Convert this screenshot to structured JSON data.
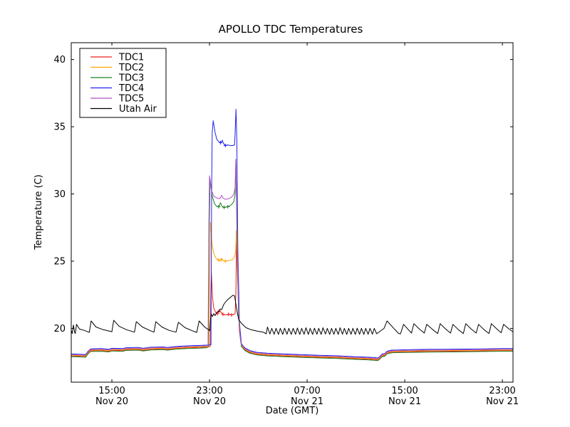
{
  "chart_data": {
    "type": "line",
    "title": "APOLLO TDC Temperatures",
    "xlabel": "Date (GMT)",
    "ylabel": "Temperature (C)",
    "x_unit": "hours since Nov 20 00:00 GMT",
    "xlim": [
      11.67,
      47.87
    ],
    "ylim": [
      16.0,
      41.25
    ],
    "grid": false,
    "yticks": [
      20,
      25,
      30,
      35,
      40
    ],
    "xticks": [
      {
        "t": 15,
        "time": "15:00",
        "date": "Nov 20"
      },
      {
        "t": 23,
        "time": "23:00",
        "date": "Nov 20"
      },
      {
        "t": 31,
        "time": "07:00",
        "date": "Nov 21"
      },
      {
        "t": 39,
        "time": "15:00",
        "date": "Nov 21"
      },
      {
        "t": 47,
        "time": "23:00",
        "date": "Nov 21"
      }
    ],
    "legend": {
      "position": "upper left",
      "entries": [
        "TDC1",
        "TDC2",
        "TDC3",
        "TDC4",
        "TDC5",
        "Utah Air"
      ]
    },
    "tdc_baseline_pre": [
      [
        11.67,
        18.1
      ],
      [
        12.3,
        18.08
      ],
      [
        12.85,
        18.06
      ],
      [
        13.05,
        18.3
      ],
      [
        13.25,
        18.48
      ],
      [
        14.1,
        18.5
      ],
      [
        14.75,
        18.45
      ],
      [
        15.0,
        18.52
      ],
      [
        15.9,
        18.5
      ],
      [
        16.15,
        18.56
      ],
      [
        17.2,
        18.58
      ],
      [
        17.55,
        18.52
      ],
      [
        18.2,
        18.6
      ],
      [
        19.2,
        18.62
      ],
      [
        19.55,
        18.58
      ],
      [
        20.3,
        18.66
      ],
      [
        21.2,
        18.7
      ],
      [
        22.2,
        18.73
      ],
      [
        22.8,
        18.76
      ]
    ],
    "tdc_baseline_post": [
      [
        25.62,
        18.85
      ],
      [
        25.9,
        18.55
      ],
      [
        26.3,
        18.35
      ],
      [
        26.9,
        18.22
      ],
      [
        27.8,
        18.15
      ],
      [
        29.0,
        18.1
      ],
      [
        30.5,
        18.05
      ],
      [
        32.0,
        18.0
      ],
      [
        33.5,
        17.96
      ],
      [
        34.8,
        17.9
      ],
      [
        35.8,
        17.87
      ],
      [
        36.5,
        17.83
      ],
      [
        36.8,
        17.8
      ],
      [
        37.0,
        17.95
      ],
      [
        37.15,
        18.1
      ],
      [
        37.35,
        18.12
      ],
      [
        37.55,
        18.3
      ],
      [
        37.9,
        18.38
      ],
      [
        38.5,
        18.4
      ],
      [
        39.5,
        18.42
      ],
      [
        41.0,
        18.44
      ],
      [
        42.5,
        18.45
      ],
      [
        44.0,
        18.46
      ],
      [
        45.5,
        18.48
      ],
      [
        47.0,
        18.5
      ],
      [
        47.87,
        18.5
      ]
    ],
    "series": [
      {
        "name": "TDC1",
        "color": "#e62020",
        "offset": -0.15,
        "event": [
          [
            23.05,
            18.65
          ],
          [
            23.1,
            22.0
          ],
          [
            23.15,
            24.2
          ],
          [
            23.25,
            22.3
          ],
          [
            23.35,
            21.5
          ],
          [
            23.5,
            21.2
          ],
          [
            23.65,
            21.1
          ],
          [
            23.8,
            21.3
          ],
          [
            23.95,
            21.2
          ],
          [
            24.1,
            21.05
          ],
          [
            24.3,
            21.0
          ],
          [
            24.55,
            21.05
          ],
          [
            24.8,
            21.0
          ],
          [
            25.0,
            21.05
          ],
          [
            25.1,
            21.1
          ],
          [
            25.17,
            23.0
          ],
          [
            25.21,
            26.7
          ],
          [
            25.3,
            24.0
          ],
          [
            25.45,
            19.8
          ],
          [
            25.6,
            18.8
          ]
        ],
        "markers": [
          [
            23.65,
            21.1
          ],
          [
            23.8,
            21.3
          ],
          [
            24.1,
            21.05
          ],
          [
            24.55,
            21.05
          ],
          [
            24.8,
            21.0
          ]
        ]
      },
      {
        "name": "TDC2",
        "color": "#ffa500",
        "offset": -0.1,
        "event": [
          [
            22.95,
            18.7
          ],
          [
            23.02,
            24.0
          ],
          [
            23.08,
            27.9
          ],
          [
            23.2,
            26.3
          ],
          [
            23.35,
            25.6
          ],
          [
            23.5,
            25.25
          ],
          [
            23.7,
            25.1
          ],
          [
            23.85,
            25.05
          ],
          [
            24.0,
            25.2
          ],
          [
            24.1,
            25.05
          ],
          [
            24.3,
            25.0
          ],
          [
            24.6,
            25.05
          ],
          [
            24.85,
            25.1
          ],
          [
            25.05,
            25.3
          ],
          [
            25.15,
            25.8
          ],
          [
            25.2,
            27.3
          ],
          [
            25.3,
            25.0
          ],
          [
            25.42,
            20.5
          ],
          [
            25.58,
            19.0
          ]
        ],
        "markers": [
          [
            23.75,
            25.08
          ],
          [
            23.95,
            25.1
          ],
          [
            24.3,
            25.0
          ]
        ]
      },
      {
        "name": "TDC3",
        "color": "#208020",
        "offset": -0.2,
        "event": [
          [
            22.9,
            18.7
          ],
          [
            22.97,
            27.0
          ],
          [
            23.05,
            31.1
          ],
          [
            23.2,
            29.9
          ],
          [
            23.4,
            29.3
          ],
          [
            23.55,
            29.1
          ],
          [
            23.75,
            29.05
          ],
          [
            23.9,
            29.35
          ],
          [
            24.0,
            29.1
          ],
          [
            24.2,
            29.0
          ],
          [
            24.5,
            29.05
          ],
          [
            24.8,
            29.2
          ],
          [
            25.0,
            29.45
          ],
          [
            25.1,
            30.0
          ],
          [
            25.16,
            32.55
          ],
          [
            25.25,
            27.0
          ],
          [
            25.38,
            21.0
          ],
          [
            25.52,
            19.3
          ]
        ],
        "markers": [
          [
            23.75,
            29.05
          ],
          [
            24.2,
            29.0
          ],
          [
            24.5,
            29.05
          ]
        ]
      },
      {
        "name": "TDC4",
        "color": "#2222ee",
        "offset": 0,
        "event": [
          [
            23.12,
            18.78
          ],
          [
            23.17,
            30.0
          ],
          [
            23.22,
            34.5
          ],
          [
            23.3,
            35.45
          ],
          [
            23.45,
            34.6
          ],
          [
            23.6,
            34.05
          ],
          [
            23.8,
            33.85
          ],
          [
            23.95,
            33.8
          ],
          [
            24.05,
            34.0
          ],
          [
            24.15,
            33.75
          ],
          [
            24.3,
            33.6
          ],
          [
            24.5,
            33.65
          ],
          [
            24.7,
            33.6
          ],
          [
            24.9,
            33.6
          ],
          [
            25.05,
            33.65
          ],
          [
            25.1,
            34.5
          ],
          [
            25.17,
            36.3
          ],
          [
            25.24,
            34.0
          ],
          [
            25.32,
            26.0
          ],
          [
            25.45,
            20.5
          ],
          [
            25.58,
            19.2
          ]
        ],
        "markers": [
          [
            23.9,
            33.82
          ],
          [
            24.3,
            33.6
          ]
        ]
      },
      {
        "name": "TDC5",
        "color": "#b050c0",
        "offset": -0.05,
        "event": [
          [
            22.88,
            18.75
          ],
          [
            22.95,
            28.0
          ],
          [
            23.0,
            31.35
          ],
          [
            23.15,
            30.3
          ],
          [
            23.35,
            29.85
          ],
          [
            23.6,
            29.7
          ],
          [
            23.85,
            29.65
          ],
          [
            24.0,
            29.9
          ],
          [
            24.1,
            29.7
          ],
          [
            24.3,
            29.6
          ],
          [
            24.6,
            29.65
          ],
          [
            24.85,
            29.8
          ],
          [
            25.0,
            30.0
          ],
          [
            25.1,
            30.5
          ],
          [
            25.15,
            32.6
          ],
          [
            25.26,
            28.0
          ],
          [
            25.38,
            22.0
          ],
          [
            25.5,
            19.5
          ]
        ],
        "markers": []
      },
      {
        "name": "Utah Air",
        "color": "#000000",
        "points": [
          [
            11.67,
            19.85
          ],
          [
            11.75,
            19.62
          ],
          [
            11.85,
            20.25
          ],
          [
            11.95,
            19.7
          ],
          [
            12.0,
            19.62
          ],
          [
            12.1,
            20.3
          ],
          [
            12.35,
            19.95
          ],
          [
            12.75,
            19.85
          ],
          [
            13.1,
            19.72
          ],
          [
            13.15,
            19.7
          ],
          [
            13.3,
            20.55
          ],
          [
            13.7,
            20.1
          ],
          [
            14.3,
            19.9
          ],
          [
            14.9,
            19.78
          ],
          [
            15.0,
            19.75
          ],
          [
            15.15,
            20.6
          ],
          [
            15.6,
            20.15
          ],
          [
            16.2,
            19.9
          ],
          [
            16.75,
            19.75
          ],
          [
            16.85,
            19.72
          ],
          [
            17.0,
            20.5
          ],
          [
            17.5,
            20.1
          ],
          [
            18.1,
            19.85
          ],
          [
            18.45,
            19.72
          ],
          [
            18.6,
            20.5
          ],
          [
            19.1,
            20.1
          ],
          [
            19.7,
            19.85
          ],
          [
            20.25,
            19.72
          ],
          [
            20.45,
            20.45
          ],
          [
            21.0,
            20.05
          ],
          [
            21.6,
            19.82
          ],
          [
            21.95,
            19.7
          ],
          [
            22.15,
            20.55
          ],
          [
            22.6,
            20.1
          ],
          [
            22.95,
            19.88
          ],
          [
            23.02,
            19.82
          ],
          [
            23.08,
            20.6
          ],
          [
            23.15,
            21.05
          ],
          [
            23.25,
            20.88
          ],
          [
            23.35,
            21.1
          ],
          [
            23.45,
            20.95
          ],
          [
            23.6,
            21.2
          ],
          [
            23.75,
            21.28
          ],
          [
            23.9,
            21.45
          ],
          [
            24.0,
            21.4
          ],
          [
            24.15,
            21.75
          ],
          [
            24.3,
            21.95
          ],
          [
            24.5,
            22.15
          ],
          [
            24.7,
            22.3
          ],
          [
            24.93,
            22.47
          ],
          [
            25.05,
            22.42
          ],
          [
            25.25,
            21.3
          ],
          [
            25.4,
            20.62
          ],
          [
            25.7,
            20.3
          ],
          [
            26.0,
            20.05
          ],
          [
            26.4,
            19.9
          ],
          [
            26.9,
            19.8
          ],
          [
            27.4,
            19.72
          ],
          [
            27.65,
            19.6
          ],
          [
            27.75,
            20.1
          ],
          [
            27.95,
            19.58
          ],
          [
            28.1,
            20.0
          ],
          [
            28.3,
            19.56
          ],
          [
            28.45,
            20.0
          ],
          [
            28.65,
            19.55
          ],
          [
            28.8,
            20.0
          ],
          [
            29.0,
            19.55
          ],
          [
            29.15,
            20.02
          ],
          [
            29.35,
            19.56
          ],
          [
            29.5,
            20.0
          ],
          [
            29.7,
            19.55
          ],
          [
            29.85,
            20.0
          ],
          [
            30.05,
            19.56
          ],
          [
            30.2,
            20.03
          ],
          [
            30.4,
            19.55
          ],
          [
            30.55,
            20.0
          ],
          [
            30.75,
            19.56
          ],
          [
            30.9,
            20.05
          ],
          [
            31.1,
            19.55
          ],
          [
            31.25,
            20.0
          ],
          [
            31.45,
            19.55
          ],
          [
            31.6,
            20.02
          ],
          [
            31.8,
            19.56
          ],
          [
            31.95,
            20.0
          ],
          [
            32.15,
            19.55
          ],
          [
            32.3,
            20.05
          ],
          [
            32.5,
            19.58
          ],
          [
            32.65,
            20.0
          ],
          [
            32.85,
            19.55
          ],
          [
            33.0,
            20.0
          ],
          [
            33.2,
            19.56
          ],
          [
            33.35,
            20.0
          ],
          [
            33.55,
            19.55
          ],
          [
            33.7,
            20.05
          ],
          [
            33.9,
            19.57
          ],
          [
            34.05,
            20.0
          ],
          [
            34.25,
            19.55
          ],
          [
            34.4,
            20.0
          ],
          [
            34.6,
            19.56
          ],
          [
            34.75,
            20.0
          ],
          [
            34.95,
            19.55
          ],
          [
            35.1,
            20.02
          ],
          [
            35.3,
            19.56
          ],
          [
            35.45,
            20.0
          ],
          [
            35.65,
            19.55
          ],
          [
            35.8,
            20.0
          ],
          [
            36.0,
            19.56
          ],
          [
            36.15,
            20.0
          ],
          [
            36.35,
            19.57
          ],
          [
            36.5,
            20.0
          ],
          [
            36.7,
            19.6
          ],
          [
            37.3,
            20.0
          ],
          [
            37.55,
            20.55
          ],
          [
            38.1,
            20.0
          ],
          [
            38.5,
            19.62
          ],
          [
            38.65,
            19.6
          ],
          [
            38.9,
            20.3
          ],
          [
            39.3,
            19.9
          ],
          [
            39.55,
            19.65
          ],
          [
            39.75,
            20.35
          ],
          [
            40.2,
            19.95
          ],
          [
            40.6,
            19.65
          ],
          [
            40.8,
            20.3
          ],
          [
            41.3,
            19.9
          ],
          [
            41.7,
            19.62
          ],
          [
            41.9,
            20.35
          ],
          [
            42.35,
            19.95
          ],
          [
            42.75,
            19.65
          ],
          [
            42.95,
            20.3
          ],
          [
            43.4,
            19.9
          ],
          [
            43.8,
            19.62
          ],
          [
            44.0,
            20.35
          ],
          [
            44.45,
            19.95
          ],
          [
            44.85,
            19.65
          ],
          [
            45.05,
            20.3
          ],
          [
            45.5,
            19.9
          ],
          [
            45.9,
            19.62
          ],
          [
            46.1,
            20.35
          ],
          [
            46.55,
            19.95
          ],
          [
            46.9,
            19.68
          ],
          [
            47.1,
            20.3
          ],
          [
            47.55,
            19.95
          ],
          [
            47.87,
            19.75
          ]
        ]
      }
    ]
  }
}
